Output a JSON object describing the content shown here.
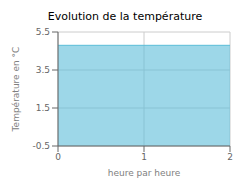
{
  "chart_data": {
    "type": "area",
    "title": "Evolution de la température",
    "xlabel": "heure par heure",
    "ylabel": "Température en °C",
    "x": [
      0,
      2
    ],
    "values": [
      4.8,
      4.8
    ],
    "color": "#5bbdd8",
    "xlim": [
      0,
      2
    ],
    "ylim": [
      -0.5,
      5.5
    ],
    "xticks": [
      0,
      1,
      2
    ],
    "yticks": [
      -0.5,
      1.5,
      3.5,
      5.5
    ],
    "grid": true
  }
}
